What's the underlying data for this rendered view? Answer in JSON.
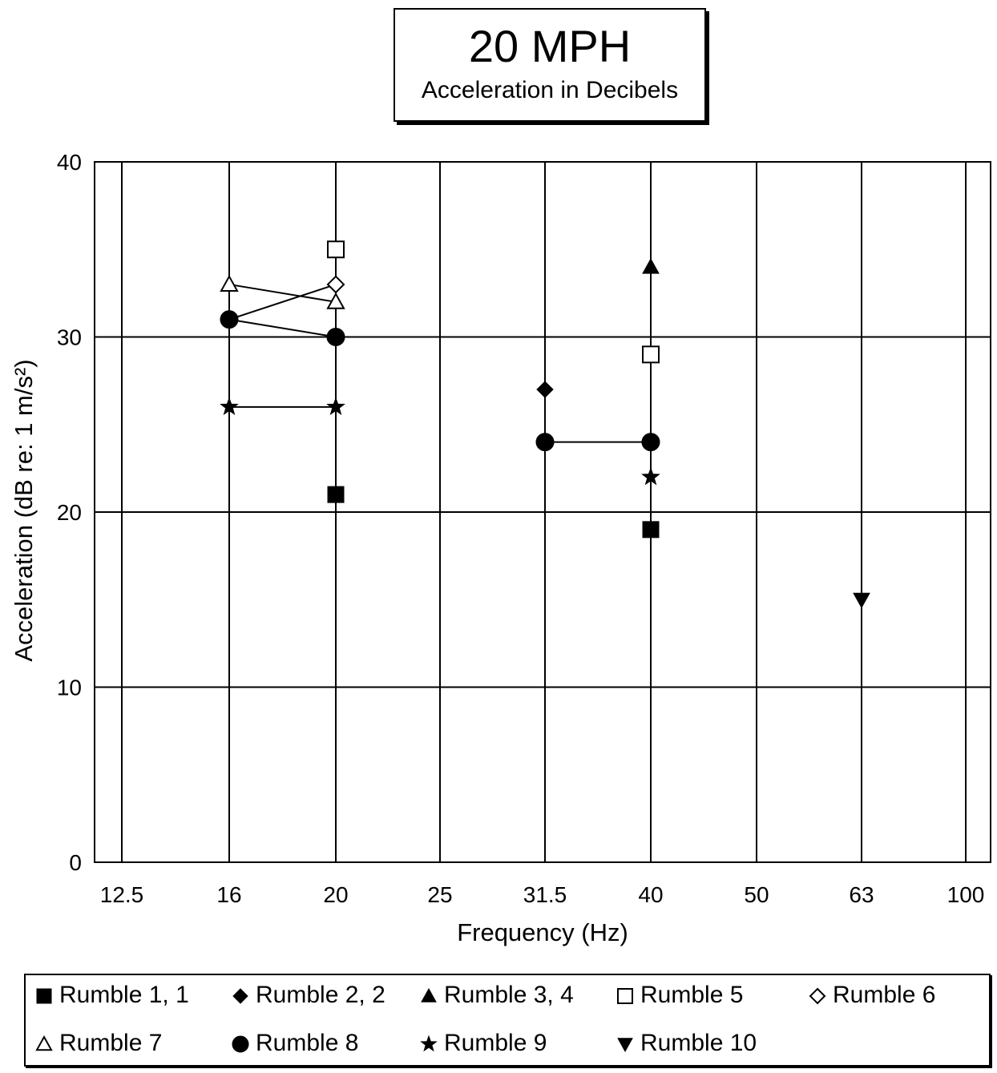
{
  "chart_data": {
    "type": "scatter",
    "title": "20 MPH",
    "subtitle": "Acceleration in Decibels",
    "xlabel": "Frequency (Hz)",
    "ylabel": "Acceleration (dB re: 1 m/s²)",
    "x_categories": [
      "12.5",
      "16",
      "20",
      "25",
      "31.5",
      "40",
      "50",
      "63",
      "100"
    ],
    "ylim": [
      0,
      40
    ],
    "yticks": [
      0,
      10,
      20,
      30,
      40
    ],
    "grid": true,
    "legend_position": "bottom",
    "series": [
      {
        "name": "Rumble 1, 1",
        "marker": "square-filled",
        "connected": false,
        "points": [
          {
            "x": "20",
            "y": 21
          },
          {
            "x": "40",
            "y": 19
          }
        ]
      },
      {
        "name": "Rumble 2, 2",
        "marker": "diamond-filled",
        "connected": false,
        "points": [
          {
            "x": "31.5",
            "y": 27
          }
        ]
      },
      {
        "name": "Rumble 3, 4",
        "marker": "triangle-up-filled",
        "connected": false,
        "points": [
          {
            "x": "40",
            "y": 34
          }
        ]
      },
      {
        "name": "Rumble 5",
        "marker": "square-open",
        "connected": false,
        "points": [
          {
            "x": "20",
            "y": 35
          },
          {
            "x": "40",
            "y": 29
          }
        ]
      },
      {
        "name": "Rumble 6",
        "marker": "diamond-open",
        "connected": true,
        "points": [
          {
            "x": "16",
            "y": 31
          },
          {
            "x": "20",
            "y": 33
          }
        ]
      },
      {
        "name": "Rumble 7",
        "marker": "triangle-up-open",
        "connected": true,
        "points": [
          {
            "x": "16",
            "y": 33
          },
          {
            "x": "20",
            "y": 32
          }
        ]
      },
      {
        "name": "Rumble 8",
        "marker": "circle-filled",
        "connected": true,
        "segments": [
          [
            {
              "x": "16",
              "y": 31
            },
            {
              "x": "20",
              "y": 30
            }
          ],
          [
            {
              "x": "31.5",
              "y": 24
            },
            {
              "x": "40",
              "y": 24
            }
          ]
        ]
      },
      {
        "name": "Rumble 9",
        "marker": "star-filled",
        "connected": true,
        "segments": [
          [
            {
              "x": "16",
              "y": 26
            },
            {
              "x": "20",
              "y": 26
            }
          ],
          [
            {
              "x": "40",
              "y": 22
            }
          ]
        ]
      },
      {
        "name": "Rumble 10",
        "marker": "triangle-down-filled",
        "connected": false,
        "points": [
          {
            "x": "63",
            "y": 15
          }
        ]
      }
    ]
  }
}
